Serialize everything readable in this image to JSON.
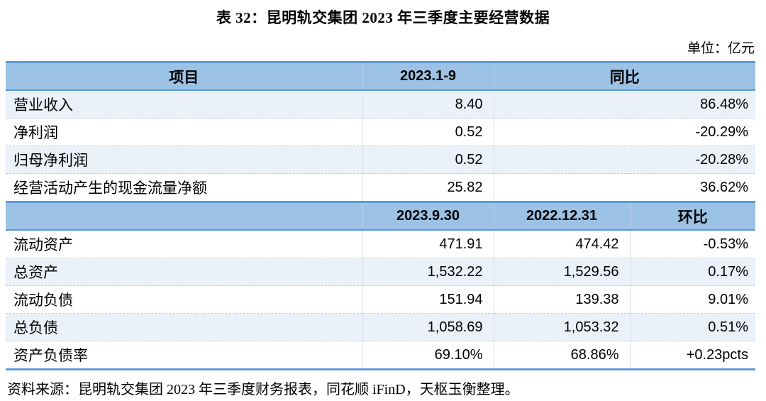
{
  "title": "表 32：昆明轨交集团 2023 年三季度主要经营数据",
  "unit_label": "单位：亿元",
  "source_note": "资料来源：昆明轨交集团 2023 年三季度财务报表，同花顺 iFinD，天枢玉衡整理。",
  "colors": {
    "header_bg": "#9CC2E5",
    "heavy_border": "#5B9BD5",
    "band_row": "#EAF1F9"
  },
  "table": {
    "section1": {
      "headers": {
        "item": "项目",
        "period": "2023.1-9",
        "yoy": "同比"
      },
      "rows": [
        {
          "label": "营业收入",
          "value": "8.40",
          "yoy": "86.48%"
        },
        {
          "label": "净利润",
          "value": "0.52",
          "yoy": "-20.29%"
        },
        {
          "label": "归母净利润",
          "value": "0.52",
          "yoy": "-20.28%"
        },
        {
          "label": "经营活动产生的现金流量净额",
          "value": "25.82",
          "yoy": "36.62%"
        }
      ]
    },
    "section2": {
      "headers": {
        "item": "",
        "date1": "2023.9.30",
        "date2": "2022.12.31",
        "qoq": "环比"
      },
      "rows": [
        {
          "label": "流动资产",
          "v1": "471.91",
          "v2": "474.42",
          "chg": "-0.53%"
        },
        {
          "label": "总资产",
          "v1": "1,532.22",
          "v2": "1,529.56",
          "chg": "0.17%"
        },
        {
          "label": "流动负债",
          "v1": "151.94",
          "v2": "139.38",
          "chg": "9.01%"
        },
        {
          "label": "总负债",
          "v1": "1,058.69",
          "v2": "1,053.32",
          "chg": "0.51%"
        },
        {
          "label": "资产负债率",
          "v1": "69.10%",
          "v2": "68.86%",
          "chg": "+0.23pcts"
        }
      ]
    }
  },
  "chart_data": {
    "type": "table",
    "title": "表 32：昆明轨交集团 2023 年三季度主要经营数据",
    "unit": "亿元",
    "sections": [
      {
        "columns": [
          "项目",
          "2023.1-9",
          "同比"
        ],
        "rows": [
          [
            "营业收入",
            8.4,
            "86.48%"
          ],
          [
            "净利润",
            0.52,
            "-20.29%"
          ],
          [
            "归母净利润",
            0.52,
            "-20.28%"
          ],
          [
            "经营活动产生的现金流量净额",
            25.82,
            "36.62%"
          ]
        ]
      },
      {
        "columns": [
          "",
          "2023.9.30",
          "2022.12.31",
          "环比"
        ],
        "rows": [
          [
            "流动资产",
            471.91,
            474.42,
            "-0.53%"
          ],
          [
            "总资产",
            1532.22,
            1529.56,
            "0.17%"
          ],
          [
            "流动负债",
            151.94,
            139.38,
            "9.01%"
          ],
          [
            "总负债",
            1058.69,
            1053.32,
            "0.51%"
          ],
          [
            "资产负债率",
            "69.10%",
            "68.86%",
            "+0.23pcts"
          ]
        ]
      }
    ]
  }
}
